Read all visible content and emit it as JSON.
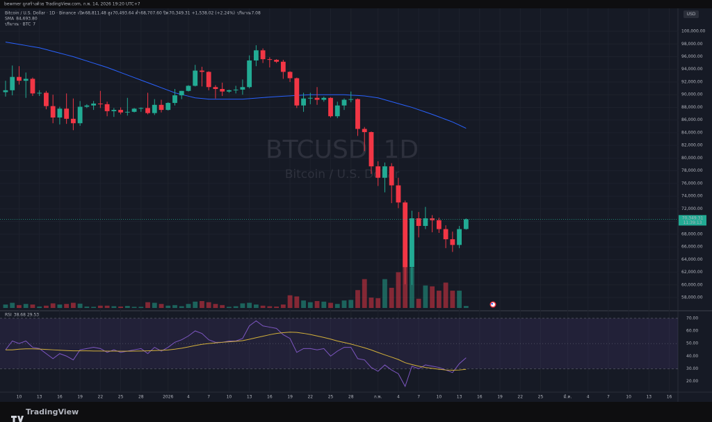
{
  "header": {
    "author": "bewmer ถูกสร้างด้วย TradingView.com, ก.พ. 14, 2026 19:20 UTC+7",
    "currency": "USD",
    "brand": "TradingView"
  },
  "chart_data": {
    "type": "candlestick",
    "title": "Bitcoin / U.S. Dollar · 1D · Binance",
    "watermark": "BTCUSD, 1D",
    "watermark_subtitle": "Bitcoin / U.S. Dollar",
    "ohlc_legend": [
      {
        "key": "เปิด",
        "value": "68,811.48"
      },
      {
        "key": "สูง",
        "value": "70,493.64"
      },
      {
        "key": "ต่ำ",
        "value": "68,707.60"
      },
      {
        "key": "ปิด",
        "value": "70,349.31"
      }
    ],
    "change": "+1,538.02 (+2.24%)",
    "volume_legend": {
      "key": "ปริมาณ",
      "value": "7.08"
    },
    "last_price_label": "70,349.31",
    "countdown": "11:39:13",
    "up_color": "#22ab94",
    "down_color": "#f23645",
    "xlim": [
      -0.82,
      99.28
    ],
    "xticks": [
      {
        "value": 2,
        "label": "10"
      },
      {
        "value": 5,
        "label": "13"
      },
      {
        "value": 8,
        "label": "16"
      },
      {
        "value": 11,
        "label": "19"
      },
      {
        "value": 14,
        "label": "22"
      },
      {
        "value": 17,
        "label": "25"
      },
      {
        "value": 20,
        "label": "28"
      },
      {
        "value": 24,
        "label": "2026"
      },
      {
        "value": 27,
        "label": "4"
      },
      {
        "value": 30,
        "label": "7"
      },
      {
        "value": 33,
        "label": "10"
      },
      {
        "value": 36,
        "label": "13"
      },
      {
        "value": 39,
        "label": "16"
      },
      {
        "value": 42,
        "label": "19"
      },
      {
        "value": 45,
        "label": "22"
      },
      {
        "value": 48,
        "label": "25"
      },
      {
        "value": 51,
        "label": "28"
      },
      {
        "value": 55,
        "label": "ก.พ."
      },
      {
        "value": 58,
        "label": "4"
      },
      {
        "value": 61,
        "label": "7"
      },
      {
        "value": 64,
        "label": "10"
      },
      {
        "value": 67,
        "label": "13"
      },
      {
        "value": 70,
        "label": "16"
      },
      {
        "value": 73,
        "label": "19"
      },
      {
        "value": 76,
        "label": "22"
      },
      {
        "value": 79,
        "label": "25"
      },
      {
        "value": 83,
        "label": "มี.ค."
      },
      {
        "value": 86,
        "label": "4"
      },
      {
        "value": 89,
        "label": "7"
      },
      {
        "value": 92,
        "label": "10"
      },
      {
        "value": 95,
        "label": "13"
      },
      {
        "value": 98,
        "label": "16"
      }
    ],
    "ylim": [
      55920,
      103620
    ],
    "yticks": [
      {
        "value": 58000,
        "label": "58,000.00"
      },
      {
        "value": 60000,
        "label": "60,000.00"
      },
      {
        "value": 62000,
        "label": "62,000.00"
      },
      {
        "value": 64000,
        "label": "64,000.00"
      },
      {
        "value": 66000,
        "label": "66,000.00"
      },
      {
        "value": 68000,
        "label": "68,000.00"
      },
      {
        "value": 70000,
        "label": "70,000.00"
      },
      {
        "value": 72000,
        "label": "72,000.00"
      },
      {
        "value": 74000,
        "label": "74,000.00"
      },
      {
        "value": 76000,
        "label": "76,000.00"
      },
      {
        "value": 78000,
        "label": "78,000.00"
      },
      {
        "value": 80000,
        "label": "80,000.00"
      },
      {
        "value": 82000,
        "label": "82,000.00"
      },
      {
        "value": 84000,
        "label": "84,000.00"
      },
      {
        "value": 86000,
        "label": "86,000.00"
      },
      {
        "value": 88000,
        "label": "88,000.00"
      },
      {
        "value": 90000,
        "label": "90,000.00"
      },
      {
        "value": 92000,
        "label": "92,000.00"
      },
      {
        "value": 94000,
        "label": "94,000.00"
      },
      {
        "value": 96000,
        "label": "96,000.00"
      },
      {
        "value": 98000,
        "label": "98,000.00"
      },
      {
        "value": 100000,
        "label": "100,000.00"
      }
    ],
    "grid": true,
    "open": [
      90400,
      90700,
      92800,
      92200,
      92500,
      90200,
      90300,
      88200,
      86400,
      87800,
      86200,
      85500,
      88100,
      88300,
      88600,
      88500,
      87400,
      87600,
      87200,
      87300,
      87800,
      87900,
      87100,
      88400,
      87600,
      88700,
      89900,
      90600,
      91400,
      93800,
      93600,
      91200,
      90900,
      90500,
      90700,
      90800,
      91200,
      95400,
      97000,
      95600,
      95500,
      95200,
      93600,
      92600,
      88300,
      89400,
      89500,
      89200,
      89500,
      86600,
      88300,
      89200,
      89300,
      84600,
      84100,
      78700,
      76900,
      78700,
      75700,
      73000,
      62800,
      70500,
      69300,
      70500,
      70200,
      68800,
      67200,
      66300,
      68811.48
    ],
    "high": [
      92200,
      94600,
      94500,
      93500,
      92700,
      90700,
      90600,
      90000,
      88100,
      90200,
      89400,
      89000,
      88500,
      89000,
      90600,
      88900,
      87900,
      88000,
      89500,
      87900,
      88000,
      90300,
      89300,
      89200,
      88800,
      90900,
      90600,
      91500,
      94700,
      94400,
      93700,
      91500,
      91900,
      90800,
      91400,
      92400,
      96200,
      97800,
      97300,
      95900,
      95600,
      95500,
      93700,
      92700,
      90300,
      90300,
      91200,
      89700,
      89600,
      88900,
      89400,
      90500,
      89400,
      84900,
      84200,
      79500,
      79300,
      79200,
      76900,
      73300,
      71700,
      71500,
      72300,
      71000,
      70600,
      69400,
      68400,
      69300,
      70493.64
    ],
    "low": [
      89700,
      89900,
      91600,
      89500,
      89800,
      89800,
      87700,
      85500,
      85300,
      85400,
      84400,
      85100,
      87900,
      87600,
      87900,
      86600,
      86500,
      86900,
      86700,
      87200,
      87300,
      86900,
      86800,
      87200,
      87500,
      88300,
      89300,
      90500,
      91300,
      91300,
      90700,
      89400,
      89800,
      90300,
      90200,
      90000,
      91000,
      94500,
      95000,
      94300,
      95000,
      92500,
      92000,
      87900,
      87300,
      88500,
      88400,
      88900,
      86400,
      86300,
      87600,
      88800,
      83500,
      81100,
      77500,
      75600,
      74600,
      72900,
      72100,
      60100,
      60000,
      67500,
      68800,
      68300,
      68200,
      65800,
      65200,
      65800,
      68707.6
    ],
    "close": [
      90700,
      92800,
      92200,
      92500,
      90200,
      90300,
      88200,
      86400,
      87800,
      86200,
      85500,
      88100,
      88300,
      88600,
      88500,
      87400,
      87600,
      87200,
      87300,
      87800,
      87900,
      87100,
      88400,
      87600,
      88700,
      89900,
      90600,
      91400,
      93800,
      93600,
      91200,
      90900,
      90500,
      90700,
      90800,
      91200,
      95400,
      97000,
      95600,
      95500,
      95200,
      93600,
      92600,
      88300,
      89400,
      89500,
      89200,
      89500,
      86600,
      88300,
      89200,
      89300,
      84600,
      84100,
      78700,
      76900,
      78700,
      75700,
      73000,
      62800,
      70500,
      69300,
      70500,
      70200,
      68800,
      67200,
      66300,
      68800,
      70349.31
    ],
    "volume": {
      "name": "ปริมาณ · BTC",
      "value_label": "7",
      "values": [
        12,
        18,
        10,
        14,
        12,
        5,
        8,
        16,
        12,
        14,
        18,
        15,
        5,
        4,
        8,
        8,
        6,
        5,
        7,
        4,
        4,
        20,
        18,
        14,
        8,
        10,
        6,
        14,
        22,
        24,
        20,
        14,
        10,
        4,
        6,
        16,
        18,
        12,
        8,
        6,
        5,
        12,
        44,
        40,
        26,
        20,
        24,
        22,
        18,
        14,
        26,
        28,
        62,
        100,
        36,
        34,
        100,
        70,
        124,
        200,
        140,
        32,
        78,
        75,
        60,
        88,
        60,
        60,
        7.08
      ]
    },
    "sma": {
      "name": "SMA",
      "value_label": "84,693.80",
      "color": "#2962ff",
      "values": [
        98300,
        98120,
        97940,
        97760,
        97580,
        97400,
        97120,
        96840,
        96560,
        96280,
        96000,
        95660,
        95320,
        94980,
        94640,
        94300,
        93900,
        93500,
        93100,
        92700,
        92300,
        91900,
        91500,
        91100,
        90700,
        90300,
        90030,
        89770,
        89500,
        89400,
        89300,
        89300,
        89300,
        89300,
        89300,
        89300,
        89380,
        89460,
        89540,
        89620,
        89700,
        89760,
        89820,
        89880,
        89940,
        90000,
        90000,
        90000,
        90000,
        90000,
        90000,
        89930,
        89870,
        89800,
        89650,
        89500,
        89200,
        88900,
        88600,
        88300,
        88000,
        87630,
        87270,
        86900,
        86500,
        86100,
        85700,
        85200,
        84693.8
      ]
    },
    "rsi": {
      "name": "RSI",
      "ylim": [
        12,
        76
      ],
      "yticks": [
        {
          "value": 20,
          "label": "20.00"
        },
        {
          "value": 30,
          "label": "30.00"
        },
        {
          "value": 40,
          "label": "40.00"
        },
        {
          "value": 50,
          "label": "50.00"
        },
        {
          "value": 60,
          "label": "60.00"
        },
        {
          "value": 70,
          "label": "70.00"
        }
      ],
      "bands": [
        70,
        50,
        30
      ],
      "series": [
        {
          "name": "RSI",
          "value_label": "38.68",
          "color": "#7e57c2",
          "values": [
            45,
            52,
            50,
            52,
            47,
            46,
            42,
            38,
            42,
            40,
            37,
            45,
            46,
            47,
            46,
            43,
            45,
            43,
            44,
            45,
            46,
            42,
            47,
            44,
            47,
            51,
            53,
            56,
            60,
            58,
            53,
            51,
            51,
            52,
            52,
            54,
            64,
            68,
            64,
            63,
            62,
            57,
            54,
            43,
            46,
            46,
            45,
            46,
            40,
            44,
            47,
            47,
            38,
            37,
            31,
            28,
            33,
            29,
            26,
            16,
            32,
            30,
            33,
            32,
            31,
            29,
            27,
            34,
            38.68
          ]
        },
        {
          "name": "RSI MA",
          "value_label": "29.53",
          "color": "#d4b13a",
          "values": [
            45,
            45,
            45.5,
            45.8,
            45.8,
            45.6,
            45.3,
            45,
            44.7,
            44.4,
            44.2,
            44.2,
            44.2,
            44.1,
            44.1,
            44,
            44,
            43.9,
            43.9,
            44,
            44.1,
            44.2,
            44.4,
            44.6,
            44.9,
            45.5,
            46.3,
            47.3,
            48.4,
            49.4,
            50,
            50.5,
            51,
            51.4,
            51.8,
            52.3,
            53.4,
            54.6,
            55.8,
            57,
            58,
            58.6,
            59,
            58.8,
            58.1,
            57.2,
            56,
            54.8,
            53.5,
            52,
            50.8,
            49.6,
            48.1,
            46.6,
            44.9,
            42.9,
            41,
            39.2,
            37.3,
            34.8,
            33.3,
            32,
            31,
            30.3,
            29.6,
            29,
            28.8,
            29,
            29.53
          ]
        }
      ]
    }
  }
}
